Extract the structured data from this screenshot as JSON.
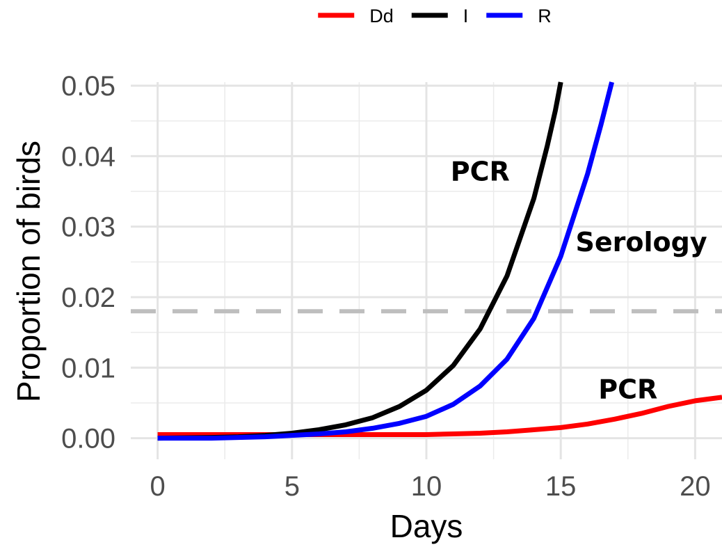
{
  "chart_data": {
    "type": "line",
    "xlabel": "Days",
    "ylabel": "Proportion of birds",
    "xlim": [
      -1,
      21
    ],
    "ylim": [
      -0.003,
      0.0505
    ],
    "x_ticks": [
      0,
      5,
      10,
      15,
      20
    ],
    "x_tick_labels": [
      "0",
      "5",
      "10",
      "15",
      "20"
    ],
    "y_ticks": [
      0,
      0.01,
      0.02,
      0.03,
      0.04,
      0.05
    ],
    "y_tick_labels": [
      "0.00",
      "0.01",
      "0.02",
      "0.03",
      "0.04",
      "0.05"
    ],
    "grid": true,
    "legend_position": "top",
    "threshold": {
      "y": 0.018,
      "color": "#bebebe",
      "style": "dashed"
    },
    "series": [
      {
        "name": "Dd",
        "color": "#ff0000",
        "points": [
          [
            0,
            0.0005
          ],
          [
            2,
            0.0005
          ],
          [
            4,
            0.0005
          ],
          [
            6,
            0.0005
          ],
          [
            8,
            0.0005
          ],
          [
            10,
            0.0005
          ],
          [
            11,
            0.0006
          ],
          [
            12,
            0.0007
          ],
          [
            13,
            0.0009
          ],
          [
            14,
            0.0012
          ],
          [
            15,
            0.0015
          ],
          [
            16,
            0.002
          ],
          [
            17,
            0.0027
          ],
          [
            18,
            0.0035
          ],
          [
            19,
            0.0045
          ],
          [
            20,
            0.0053
          ],
          [
            21,
            0.0058
          ]
        ]
      },
      {
        "name": "I",
        "color": "#000000",
        "points": [
          [
            0,
            0.0
          ],
          [
            2,
            0.0001
          ],
          [
            3,
            0.0002
          ],
          [
            4,
            0.0004
          ],
          [
            5,
            0.0007
          ],
          [
            6,
            0.0012
          ],
          [
            7,
            0.0019
          ],
          [
            8,
            0.0029
          ],
          [
            9,
            0.0045
          ],
          [
            10,
            0.0068
          ],
          [
            11,
            0.0103
          ],
          [
            12,
            0.0155
          ],
          [
            13,
            0.023
          ],
          [
            14,
            0.034
          ],
          [
            14.5,
            0.0415
          ],
          [
            14.8,
            0.0465
          ],
          [
            15.0,
            0.0505
          ]
        ]
      },
      {
        "name": "R",
        "color": "#0000ff",
        "points": [
          [
            0,
            0.0
          ],
          [
            2,
            0.0
          ],
          [
            4,
            0.0002
          ],
          [
            5,
            0.0004
          ],
          [
            6,
            0.0006
          ],
          [
            7,
            0.0009
          ],
          [
            8,
            0.0014
          ],
          [
            9,
            0.0021
          ],
          [
            10,
            0.0031
          ],
          [
            11,
            0.0048
          ],
          [
            12,
            0.0074
          ],
          [
            13,
            0.0112
          ],
          [
            14,
            0.017
          ],
          [
            15,
            0.0258
          ],
          [
            16,
            0.0375
          ],
          [
            16.5,
            0.0445
          ],
          [
            16.9,
            0.0505
          ]
        ]
      }
    ],
    "annotations": [
      {
        "text": "PCR",
        "x": 12.0,
        "y": 0.0378
      },
      {
        "text": "Serology",
        "x": 18.0,
        "y": 0.0278
      },
      {
        "text": "PCR",
        "x": 17.5,
        "y": 0.0069
      }
    ]
  }
}
